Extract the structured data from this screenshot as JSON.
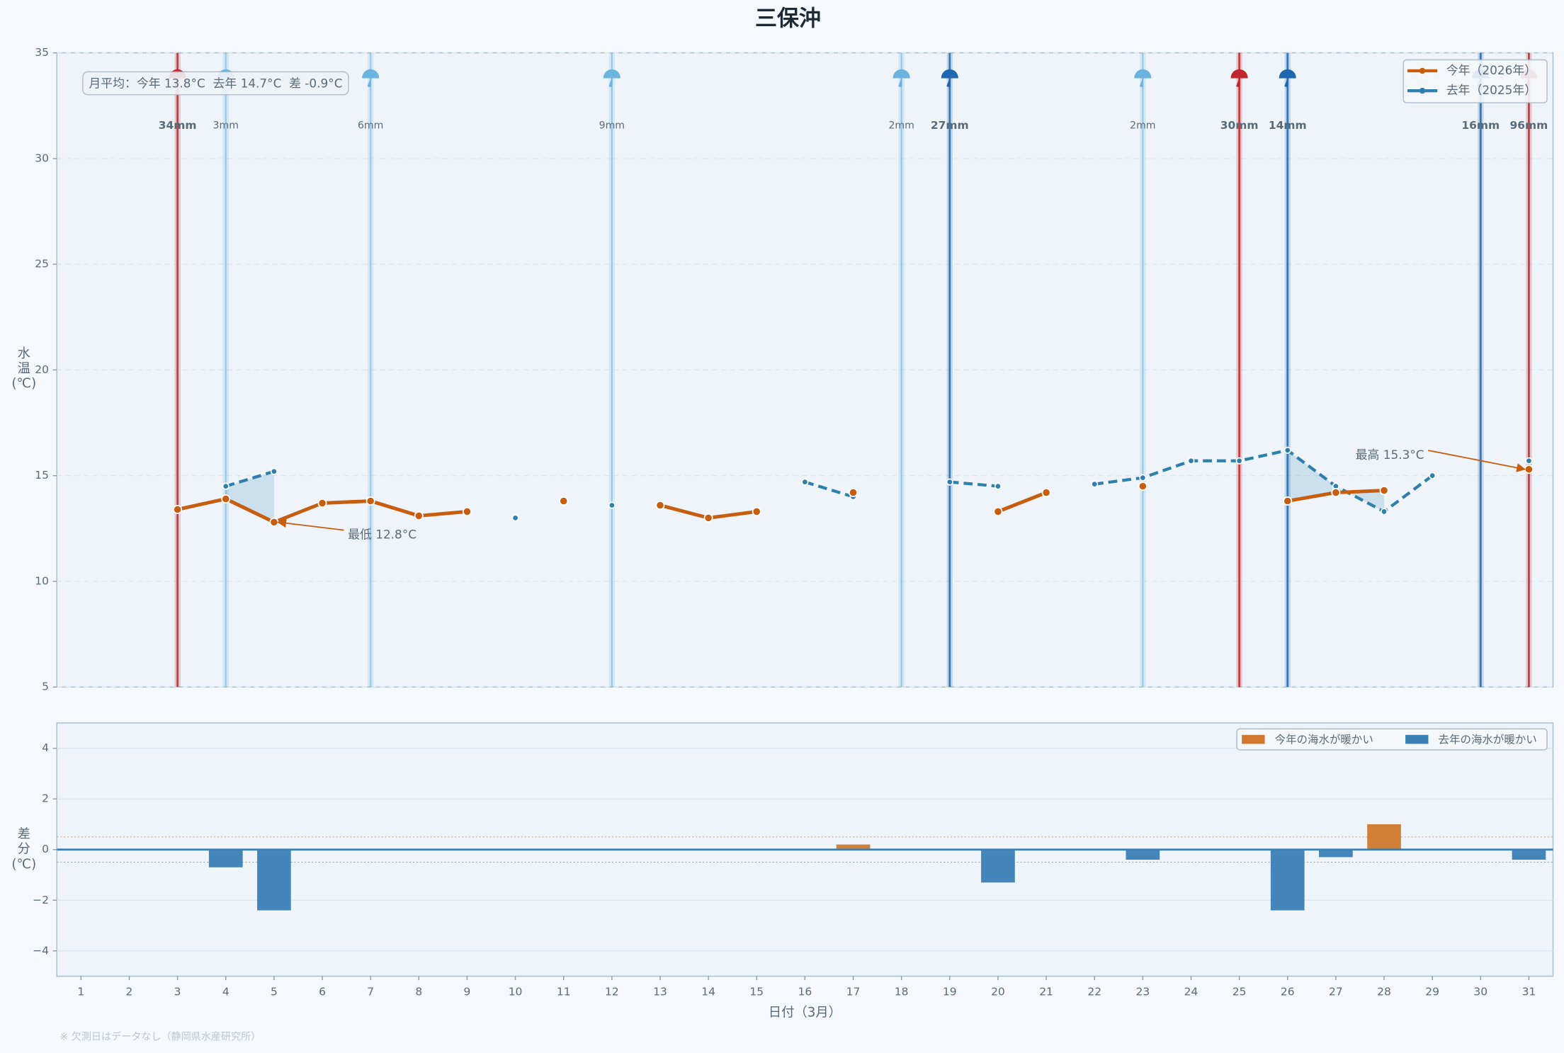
{
  "title": "三保沖",
  "footnote": "※ 欠測日はデータなし（静岡県水産研究所）",
  "chart_data": [
    {
      "type": "line",
      "ylabel_lines": [
        "水",
        "温",
        "(℃)"
      ],
      "x": [
        1,
        2,
        3,
        4,
        5,
        6,
        7,
        8,
        9,
        10,
        11,
        12,
        13,
        14,
        15,
        16,
        17,
        18,
        19,
        20,
        21,
        22,
        23,
        24,
        25,
        26,
        27,
        28,
        29,
        30,
        31
      ],
      "xlim": [
        0.5,
        31.5
      ],
      "ylim": [
        5,
        35
      ],
      "yticks": [
        5,
        10,
        15,
        20,
        25,
        30,
        35
      ],
      "grid": true,
      "legend": "upper right",
      "series": [
        {
          "name": "今年（2026年）",
          "color": "#c85d0e",
          "dashed": false,
          "values": [
            null,
            null,
            13.4,
            13.9,
            12.8,
            13.7,
            13.8,
            13.1,
            13.3,
            null,
            13.8,
            null,
            13.6,
            13.0,
            13.3,
            null,
            14.2,
            null,
            null,
            13.3,
            14.2,
            null,
            14.5,
            null,
            null,
            13.8,
            14.2,
            14.3,
            null,
            null,
            15.3
          ]
        },
        {
          "name": "去年（2025年）",
          "color": "#2e7fab",
          "dashed": true,
          "values": [
            null,
            null,
            null,
            14.5,
            15.2,
            null,
            null,
            null,
            null,
            13.0,
            null,
            13.6,
            null,
            null,
            null,
            14.7,
            14.0,
            null,
            14.7,
            14.5,
            null,
            14.6,
            14.9,
            15.7,
            15.7,
            16.2,
            14.5,
            13.3,
            15.0,
            null,
            15.7
          ]
        }
      ],
      "stats_box": "月平均：今年 13.8°C  去年 14.7°C  差 -0.9°C",
      "annotations": [
        {
          "text": "最低 12.8°C",
          "series": 0,
          "index": 4
        },
        {
          "text": "最高 15.3°C",
          "series": 0,
          "index": 30
        }
      ],
      "rain": [
        {
          "color": "#c0262b",
          "emphasis": true,
          "x": [
            3,
            25,
            31
          ],
          "values": [
            34,
            30,
            96
          ],
          "value_labels": [
            "34mm",
            "30mm",
            "96mm"
          ]
        },
        {
          "color": "#1f67b0",
          "emphasis": true,
          "x": [
            19,
            26,
            30
          ],
          "values": [
            27,
            14,
            16
          ],
          "value_labels": [
            "27mm",
            "14mm",
            "16mm"
          ]
        },
        {
          "color": "#6cb4e0",
          "emphasis": false,
          "x": [
            4,
            7,
            12,
            18,
            23
          ],
          "values": [
            3,
            6,
            9,
            2,
            2
          ],
          "value_labels": [
            "3mm",
            "6mm",
            "9mm",
            "2mm",
            "2mm"
          ]
        }
      ]
    },
    {
      "type": "bar",
      "ylabel_lines": [
        "差",
        "分",
        "(℃)"
      ],
      "xlabel": "日付（3月）",
      "x": [
        1,
        2,
        3,
        4,
        5,
        6,
        7,
        8,
        9,
        10,
        11,
        12,
        13,
        14,
        15,
        16,
        17,
        18,
        19,
        20,
        21,
        22,
        23,
        24,
        25,
        26,
        27,
        28,
        29,
        30,
        31
      ],
      "xlim": [
        0.5,
        31.5
      ],
      "xticks": [
        1,
        2,
        3,
        4,
        5,
        6,
        7,
        8,
        9,
        10,
        11,
        12,
        13,
        14,
        15,
        16,
        17,
        18,
        19,
        20,
        21,
        22,
        23,
        24,
        25,
        26,
        27,
        28,
        29,
        30,
        31
      ],
      "values": [
        null,
        null,
        null,
        -0.7,
        -2.4,
        null,
        null,
        null,
        null,
        null,
        null,
        null,
        null,
        null,
        null,
        null,
        0.2,
        null,
        null,
        -1.3,
        null,
        null,
        -0.4,
        null,
        null,
        -2.4,
        -0.3,
        1.0,
        null,
        null,
        -0.4
      ],
      "ylim": [
        -5,
        5
      ],
      "yticks": [
        {
          "value": -4,
          "label": "−4"
        },
        {
          "value": -2,
          "label": "−2"
        },
        0,
        2,
        4
      ],
      "grid": true,
      "threshold_lines": [
        0.5,
        -0.5
      ],
      "legend": [
        {
          "name": "今年の海水が暖かい",
          "color": "#d0782c"
        },
        {
          "name": "去年の海水が暖かい",
          "color": "#3a80b5"
        }
      ]
    }
  ]
}
